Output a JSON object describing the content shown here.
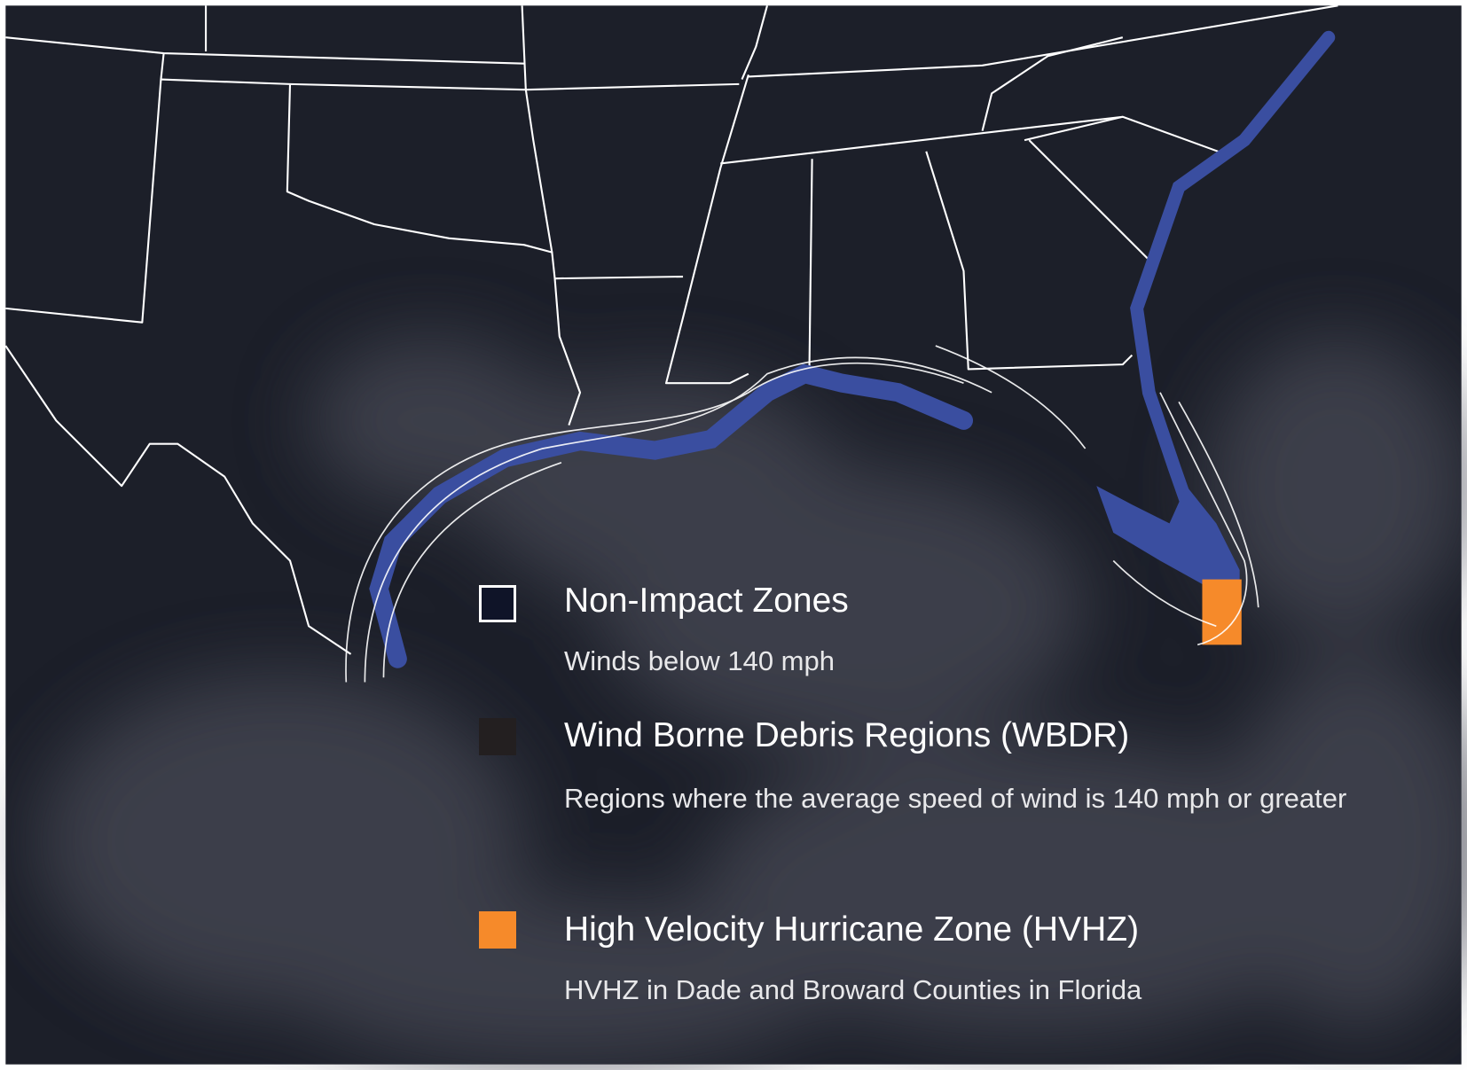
{
  "legend": {
    "items": [
      {
        "title": "Non-Impact Zones",
        "description": "Winds below 140 mph"
      },
      {
        "title": "Wind Borne Debris Regions (WBDR)",
        "description": "Regions where the average speed of wind is 140 mph or greater"
      },
      {
        "title": "High Velocity Hurricane Zone (HVHZ)",
        "description": "HVHZ in Dade and Broward Counties in Florida"
      }
    ]
  }
}
